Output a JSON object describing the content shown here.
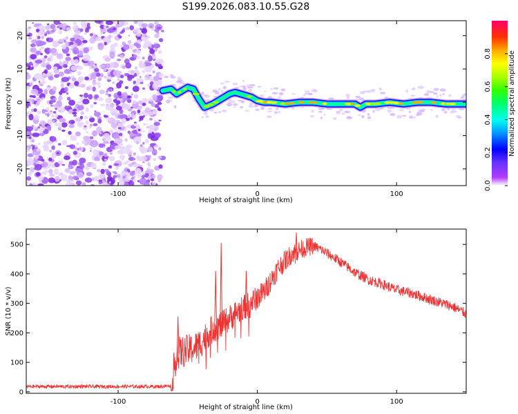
{
  "title": "S199.2026.083.10.55.G28",
  "chart_data": [
    {
      "type": "heatmap",
      "xlabel": "Height of straight line (km)",
      "ylabel": "Frequency (Hz)",
      "xlim": [
        -166,
        150
      ],
      "ylim": [
        -25,
        24.5
      ],
      "x_ticks": [
        -100,
        0,
        100
      ],
      "x_tick_labels": [
        "-100",
        "0",
        "100"
      ],
      "y_ticks": [
        20,
        10,
        0,
        -10,
        -20
      ],
      "y_tick_labels": [
        "20",
        "10",
        "0",
        "-10",
        "-20"
      ],
      "noise_region_x": [
        -166,
        -68
      ],
      "signal_trace": {
        "x": [
          -68,
          -62,
          -58,
          -54,
          -50,
          -46,
          -42,
          -38,
          -35,
          -32,
          -28,
          -24,
          -20,
          -16,
          -12,
          -8,
          -4,
          0,
          5,
          10,
          20,
          30,
          40,
          50,
          60,
          70,
          74,
          78,
          85,
          95,
          105,
          115,
          125,
          135,
          145,
          150
        ],
        "y": [
          3.5,
          4,
          2.5,
          3.5,
          4.5,
          4,
          1,
          -1.5,
          -1,
          -0.5,
          0.5,
          1.5,
          2.5,
          3,
          2.5,
          2,
          1.5,
          0.5,
          0,
          0,
          -0.5,
          0,
          0,
          -0.5,
          -0.5,
          -0.5,
          -1.5,
          -0.5,
          -0.5,
          0,
          -0.5,
          0,
          0,
          -0.5,
          -0.5,
          -0.5
        ],
        "peak_amplitude": [
          0.35,
          0.45,
          0.4,
          0.55,
          0.5,
          0.45,
          0.5,
          0.6,
          0.55,
          0.6,
          0.65,
          0.7,
          0.75,
          0.7,
          0.65,
          0.6,
          0.6,
          0.75,
          0.8,
          0.7,
          0.75,
          0.9,
          0.85,
          0.8,
          0.8,
          0.85,
          0.7,
          0.8,
          0.75,
          0.8,
          0.8,
          0.9,
          0.85,
          0.8,
          0.75,
          0.7
        ]
      },
      "colorbar": {
        "label": "Normalized spectral amplitude",
        "range": [
          0.0,
          1.0
        ],
        "ticks": [
          0.0,
          0.2,
          0.4,
          0.6,
          0.8
        ],
        "tick_labels": [
          "0.0",
          "0.2",
          "0.4",
          "0.6",
          "0.8"
        ]
      }
    },
    {
      "type": "line",
      "xlabel": "Height of straight line (km)",
      "ylabel": "SNR (10 * v/v)",
      "xlim": [
        -166,
        150
      ],
      "ylim": [
        -5,
        552
      ],
      "x_ticks": [
        -100,
        0,
        100
      ],
      "x_tick_labels": [
        "-100",
        "0",
        "100"
      ],
      "y_ticks": [
        0,
        100,
        200,
        300,
        400,
        500
      ],
      "y_tick_labels": [
        "0",
        "100",
        "200",
        "300",
        "400",
        "500"
      ],
      "color": "#ee3333",
      "envelope": {
        "x": [
          -166,
          -100,
          -70,
          -62,
          -58,
          -50,
          -45,
          -40,
          -35,
          -30,
          -25,
          -20,
          -15,
          -10,
          -5,
          0,
          5,
          10,
          15,
          20,
          25,
          30,
          35,
          40,
          45,
          50,
          60,
          70,
          80,
          90,
          100,
          110,
          120,
          130,
          140,
          150
        ],
        "y": [
          18,
          18,
          18,
          20,
          130,
          140,
          150,
          170,
          200,
          220,
          230,
          250,
          270,
          285,
          300,
          320,
          340,
          380,
          420,
          445,
          470,
          480,
          490,
          495,
          485,
          470,
          440,
          405,
          380,
          365,
          345,
          335,
          320,
          305,
          290,
          265
        ]
      },
      "spikes": [
        {
          "x": -26,
          "y": 505
        },
        {
          "x": -30,
          "y": 410
        },
        {
          "x": -57,
          "y": 255
        },
        {
          "x": -8,
          "y": 410
        },
        {
          "x": 28,
          "y": 540
        }
      ]
    }
  ]
}
